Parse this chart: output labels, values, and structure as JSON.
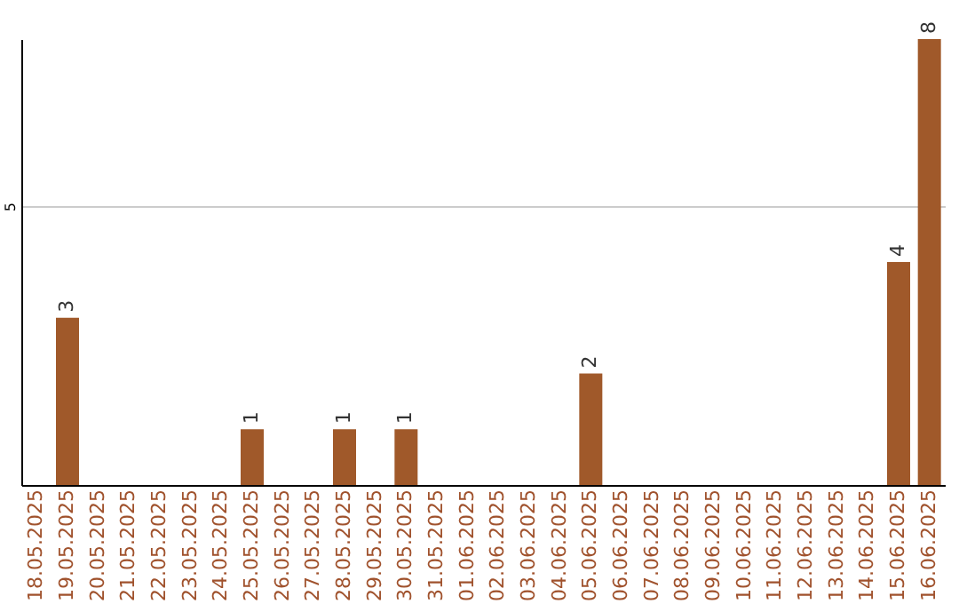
{
  "chart_data": {
    "type": "bar",
    "categories": [
      "18.05.2025",
      "19.05.2025",
      "20.05.2025",
      "21.05.2025",
      "22.05.2025",
      "23.05.2025",
      "24.05.2025",
      "25.05.2025",
      "26.05.2025",
      "27.05.2025",
      "28.05.2025",
      "29.05.2025",
      "30.05.2025",
      "31.05.2025",
      "01.06.2025",
      "02.06.2025",
      "03.06.2025",
      "04.06.2025",
      "05.06.2025",
      "06.06.2025",
      "07.06.2025",
      "08.06.2025",
      "09.06.2025",
      "10.06.2025",
      "11.06.2025",
      "12.06.2025",
      "13.06.2025",
      "14.06.2025",
      "15.06.2025",
      "16.06.2025"
    ],
    "values": [
      0,
      3,
      0,
      0,
      0,
      0,
      0,
      1,
      0,
      0,
      1,
      0,
      1,
      0,
      0,
      0,
      0,
      0,
      2,
      0,
      0,
      0,
      0,
      0,
      0,
      0,
      0,
      0,
      4,
      8
    ],
    "value_labels": [
      null,
      "3",
      null,
      null,
      null,
      null,
      null,
      "1",
      null,
      null,
      "1",
      null,
      "1",
      null,
      null,
      null,
      null,
      null,
      "2",
      null,
      null,
      null,
      null,
      null,
      null,
      null,
      null,
      null,
      "4",
      "8"
    ],
    "color": "#a0592a",
    "ylim": [
      0,
      8
    ],
    "yticks": [
      5
    ],
    "grid": "y"
  }
}
